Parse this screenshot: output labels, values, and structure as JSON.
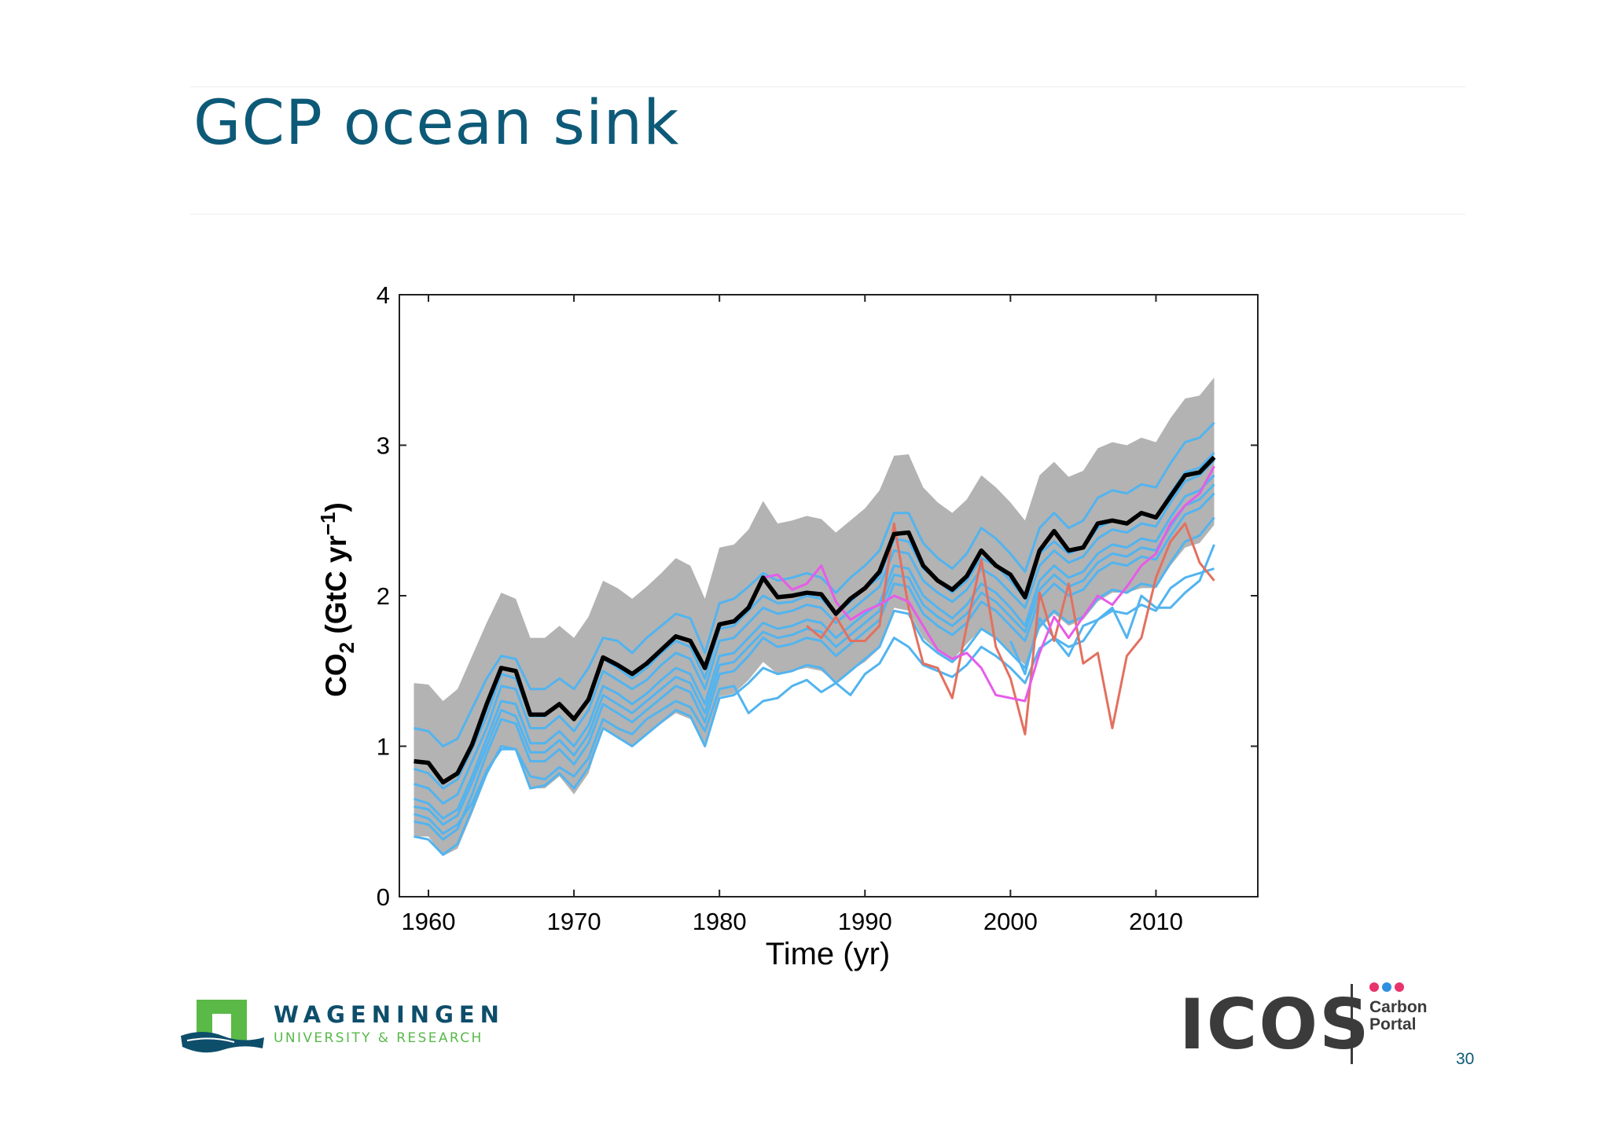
{
  "slide": {
    "title": "GCP ocean sink",
    "page_number": "30"
  },
  "logos": {
    "wur": {
      "name": "WAGENINGEN",
      "subtitle": "UNIVERSITY & RESEARCH",
      "icon": "wur-building-icon"
    },
    "icos": {
      "name": "ICOS",
      "line1": "Carbon",
      "line2": "Portal",
      "dot_colors": [
        "#e8336d",
        "#2f8fe0",
        "#e8336d"
      ]
    }
  },
  "colors": {
    "title": "#0d5a78",
    "models": "#52b4ef",
    "data_products": "#e3705f",
    "magenta": "#e65ce8",
    "budget": "#000000",
    "uncertainty": "#b3b3b3"
  },
  "chart_data": {
    "type": "line",
    "title": "",
    "xlabel": "Time (yr)",
    "ylabel": "CO2 (GtC yr−1)",
    "xlim": [
      1958,
      2017
    ],
    "ylim": [
      0,
      4
    ],
    "xticks": [
      1960,
      1970,
      1980,
      1990,
      2000,
      2010
    ],
    "yticks": [
      0,
      1,
      2,
      3,
      4
    ],
    "grid": false,
    "legend": "none",
    "x": [
      1959,
      1960,
      1961,
      1962,
      1963,
      1964,
      1965,
      1966,
      1967,
      1968,
      1969,
      1970,
      1971,
      1972,
      1973,
      1974,
      1975,
      1976,
      1977,
      1978,
      1979,
      1980,
      1981,
      1982,
      1983,
      1984,
      1985,
      1986,
      1987,
      1988,
      1989,
      1990,
      1991,
      1992,
      1993,
      1994,
      1995,
      1996,
      1997,
      1998,
      1999,
      2000,
      2001,
      2002,
      2003,
      2004,
      2005,
      2006,
      2007,
      2008,
      2009,
      2010,
      2011,
      2012,
      2013,
      2014
    ],
    "uncertainty_band": {
      "upper": [
        1.42,
        1.41,
        1.3,
        1.38,
        1.6,
        1.82,
        2.02,
        1.98,
        1.72,
        1.72,
        1.8,
        1.72,
        1.86,
        2.1,
        2.05,
        1.98,
        2.06,
        2.15,
        2.25,
        2.2,
        1.98,
        2.32,
        2.34,
        2.44,
        2.63,
        2.48,
        2.5,
        2.53,
        2.51,
        2.42,
        2.5,
        2.58,
        2.7,
        2.93,
        2.94,
        2.72,
        2.62,
        2.55,
        2.64,
        2.8,
        2.72,
        2.62,
        2.5,
        2.8,
        2.89,
        2.79,
        2.83,
        2.98,
        3.02,
        3.0,
        3.05,
        3.02,
        3.18,
        3.31,
        3.33,
        3.45
      ],
      "lower": [
        0.4,
        0.4,
        0.27,
        0.32,
        0.55,
        0.8,
        1.0,
        0.98,
        0.72,
        0.72,
        0.8,
        0.68,
        0.82,
        1.12,
        1.05,
        1.0,
        1.08,
        1.15,
        1.22,
        1.18,
        1.02,
        1.33,
        1.35,
        1.44,
        1.56,
        1.48,
        1.5,
        1.52,
        1.5,
        1.42,
        1.5,
        1.56,
        1.65,
        1.92,
        1.9,
        1.72,
        1.63,
        1.57,
        1.68,
        1.78,
        1.73,
        1.63,
        1.54,
        1.78,
        1.88,
        1.8,
        1.84,
        1.96,
        2.02,
        2.02,
        2.05,
        2.05,
        2.2,
        2.32,
        2.35,
        2.47
      ]
    },
    "series": [
      {
        "name": "",
        "role": "model",
        "values": [
          1.12,
          1.1,
          1.0,
          1.05,
          1.25,
          1.45,
          1.6,
          1.58,
          1.38,
          1.38,
          1.45,
          1.38,
          1.52,
          1.72,
          1.7,
          1.62,
          1.72,
          1.8,
          1.88,
          1.85,
          1.62,
          1.95,
          1.98,
          2.06,
          2.15,
          2.1,
          2.12,
          2.15,
          2.12,
          2.02,
          2.12,
          2.2,
          2.3,
          2.55,
          2.55,
          2.35,
          2.25,
          2.18,
          2.28,
          2.45,
          2.38,
          2.28,
          2.16,
          2.45,
          2.55,
          2.45,
          2.5,
          2.65,
          2.7,
          2.68,
          2.74,
          2.72,
          2.88,
          3.02,
          3.05,
          3.15
        ]
      },
      {
        "name": "",
        "role": "model",
        "values": [
          0.85,
          0.82,
          0.72,
          0.78,
          0.98,
          1.2,
          1.48,
          1.45,
          1.2,
          1.2,
          1.28,
          1.18,
          1.32,
          1.58,
          1.52,
          1.45,
          1.52,
          1.62,
          1.7,
          1.66,
          1.45,
          1.78,
          1.8,
          1.9,
          2.0,
          1.95,
          1.96,
          2.0,
          1.98,
          1.88,
          1.96,
          2.05,
          2.12,
          2.38,
          2.36,
          2.18,
          2.1,
          2.02,
          2.1,
          2.25,
          2.2,
          2.1,
          1.98,
          2.28,
          2.36,
          2.28,
          2.32,
          2.45,
          2.5,
          2.48,
          2.54,
          2.52,
          2.68,
          2.82,
          2.85,
          2.95
        ]
      },
      {
        "name": "",
        "role": "model",
        "values": [
          0.65,
          0.62,
          0.52,
          0.58,
          0.8,
          1.05,
          1.3,
          1.28,
          1.02,
          1.02,
          1.1,
          1.0,
          1.14,
          1.4,
          1.35,
          1.28,
          1.35,
          1.44,
          1.52,
          1.48,
          1.28,
          1.6,
          1.62,
          1.72,
          1.82,
          1.78,
          1.8,
          1.84,
          1.82,
          1.72,
          1.8,
          1.88,
          1.95,
          2.2,
          2.18,
          2.0,
          1.92,
          1.85,
          1.94,
          2.08,
          2.02,
          1.92,
          1.8,
          2.1,
          2.2,
          2.12,
          2.16,
          2.28,
          2.34,
          2.32,
          2.38,
          2.36,
          2.52,
          2.66,
          2.7,
          2.8
        ]
      },
      {
        "name": "",
        "role": "model",
        "values": [
          0.5,
          0.48,
          0.38,
          0.45,
          0.68,
          0.95,
          1.18,
          1.15,
          0.9,
          0.9,
          0.98,
          0.88,
          1.02,
          1.28,
          1.22,
          1.16,
          1.24,
          1.32,
          1.4,
          1.36,
          1.16,
          1.48,
          1.5,
          1.6,
          1.72,
          1.66,
          1.68,
          1.72,
          1.7,
          1.6,
          1.68,
          1.76,
          1.84,
          2.08,
          2.06,
          1.88,
          1.8,
          1.74,
          1.82,
          1.96,
          1.9,
          1.8,
          1.7,
          1.98,
          2.08,
          2.0,
          2.04,
          2.16,
          2.22,
          2.2,
          2.26,
          2.24,
          2.4,
          2.54,
          2.58,
          2.68
        ]
      },
      {
        "name": "",
        "role": "model",
        "values": [
          0.4,
          0.38,
          0.28,
          0.35,
          0.58,
          0.82,
          1.0,
          0.98,
          0.72,
          0.74,
          0.82,
          0.72,
          0.86,
          1.12,
          1.06,
          1.0,
          1.08,
          1.16,
          1.24,
          1.2,
          1.0,
          1.32,
          1.34,
          1.42,
          1.52,
          1.48,
          1.5,
          1.54,
          1.52,
          1.42,
          1.5,
          1.58,
          1.66,
          1.9,
          1.88,
          1.7,
          1.62,
          1.56,
          1.65,
          1.78,
          1.72,
          1.62,
          1.52,
          1.8,
          1.9,
          1.82,
          1.86,
          1.98,
          2.04,
          2.02,
          2.08,
          2.06,
          2.22,
          2.36,
          2.4,
          2.52
        ]
      },
      {
        "name": "",
        "role": "model",
        "values": [
          0.75,
          0.72,
          0.62,
          0.68,
          0.9,
          1.12,
          1.4,
          1.38,
          1.12,
          1.12,
          1.2,
          1.1,
          1.24,
          1.5,
          1.44,
          1.38,
          1.44,
          1.54,
          1.62,
          1.58,
          1.38,
          1.7,
          1.72,
          1.82,
          1.92,
          1.88,
          1.9,
          1.94,
          1.92,
          1.82,
          1.9,
          1.98,
          2.06,
          2.3,
          2.28,
          2.1,
          2.02,
          1.96,
          2.04,
          2.18,
          2.12,
          2.02,
          1.92,
          2.2,
          2.3,
          2.22,
          2.26,
          2.38,
          2.44,
          2.42,
          2.48,
          2.46,
          2.62,
          2.76,
          2.8,
          2.9
        ]
      },
      {
        "name": "",
        "role": "model",
        "values": [
          0.6,
          0.58,
          0.48,
          0.54,
          0.76,
          1.0,
          1.24,
          1.2,
          0.96,
          0.96,
          1.04,
          0.94,
          1.08,
          1.34,
          1.28,
          1.22,
          1.3,
          1.38,
          1.46,
          1.42,
          1.22,
          1.54,
          1.56,
          1.66,
          1.76,
          1.72,
          1.74,
          1.78,
          1.76,
          1.66,
          1.74,
          1.82,
          1.9,
          2.14,
          2.12,
          1.94,
          1.86,
          1.8,
          1.88,
          2.02,
          1.96,
          1.86,
          1.76,
          2.04,
          2.14,
          2.06,
          2.1,
          2.22,
          2.28,
          2.26,
          2.32,
          2.3,
          2.46,
          2.6,
          2.64,
          2.74
        ]
      },
      {
        "name": "",
        "role": "model",
        "values": [
          0.55,
          0.52,
          0.42,
          0.48,
          0.62,
          0.84,
          0.98,
          0.98,
          0.8,
          0.78,
          0.86,
          0.8,
          0.92,
          1.18,
          1.12,
          1.08,
          1.18,
          1.24,
          1.3,
          1.26,
          1.1,
          1.38,
          1.4,
          1.22,
          1.3,
          1.32,
          1.4,
          1.44,
          1.36,
          1.42,
          1.34,
          1.48,
          1.55,
          1.72,
          1.66,
          1.54,
          1.5,
          1.46,
          1.54,
          1.66,
          1.6,
          1.52,
          1.42,
          1.65,
          1.72,
          1.66,
          1.7,
          1.84,
          1.9,
          1.88,
          1.94,
          1.9,
          2.05,
          2.12,
          2.15,
          2.18
        ]
      },
      {
        "name": "",
        "role": "model",
        "values": [
          null,
          null,
          null,
          null,
          null,
          null,
          null,
          null,
          null,
          null,
          null,
          null,
          null,
          null,
          null,
          null,
          null,
          null,
          null,
          null,
          null,
          null,
          null,
          null,
          null,
          null,
          null,
          null,
          null,
          null,
          null,
          null,
          null,
          null,
          null,
          null,
          null,
          null,
          null,
          null,
          null,
          1.7,
          1.48,
          1.85,
          1.72,
          1.6,
          1.8,
          1.84,
          1.92,
          1.72,
          2.0,
          1.92,
          1.92,
          2.02,
          2.1,
          2.34
        ]
      },
      {
        "name": "",
        "role": "data-product",
        "values": [
          null,
          null,
          null,
          null,
          null,
          null,
          null,
          null,
          null,
          null,
          null,
          null,
          null,
          null,
          null,
          null,
          null,
          null,
          null,
          null,
          null,
          null,
          null,
          null,
          null,
          null,
          null,
          1.8,
          1.72,
          1.86,
          1.7,
          1.7,
          1.8,
          2.48,
          1.92,
          1.55,
          1.52,
          1.32,
          1.8,
          2.24,
          1.66,
          1.45,
          1.08,
          2.02,
          1.7,
          2.08,
          1.55,
          1.62,
          1.12,
          1.6,
          1.72,
          2.12,
          2.36,
          2.48,
          2.22,
          2.1
        ]
      },
      {
        "name": "",
        "role": "magenta",
        "values": [
          null,
          null,
          null,
          null,
          null,
          null,
          null,
          null,
          null,
          null,
          null,
          null,
          null,
          null,
          null,
          null,
          null,
          null,
          null,
          null,
          null,
          null,
          null,
          null,
          2.12,
          2.14,
          2.04,
          2.08,
          2.2,
          1.96,
          1.84,
          1.9,
          1.94,
          2.0,
          1.96,
          1.8,
          1.64,
          1.58,
          1.62,
          1.52,
          1.34,
          1.32,
          1.3,
          1.62,
          1.86,
          1.72,
          1.86,
          2.0,
          1.94,
          2.06,
          2.2,
          2.28,
          2.48,
          2.6,
          2.68,
          2.86
        ]
      },
      {
        "name": "",
        "role": "budget",
        "values": [
          0.9,
          0.89,
          0.76,
          0.82,
          1.01,
          1.28,
          1.52,
          1.5,
          1.21,
          1.21,
          1.28,
          1.18,
          1.31,
          1.59,
          1.54,
          1.48,
          1.55,
          1.64,
          1.73,
          1.7,
          1.52,
          1.81,
          1.83,
          1.92,
          2.12,
          1.99,
          2.0,
          2.02,
          2.01,
          1.88,
          1.98,
          2.05,
          2.16,
          2.41,
          2.42,
          2.2,
          2.1,
          2.04,
          2.13,
          2.3,
          2.2,
          2.14,
          1.99,
          2.3,
          2.43,
          2.3,
          2.32,
          2.48,
          2.5,
          2.48,
          2.55,
          2.52,
          2.66,
          2.8,
          2.82,
          2.92
        ]
      }
    ]
  }
}
